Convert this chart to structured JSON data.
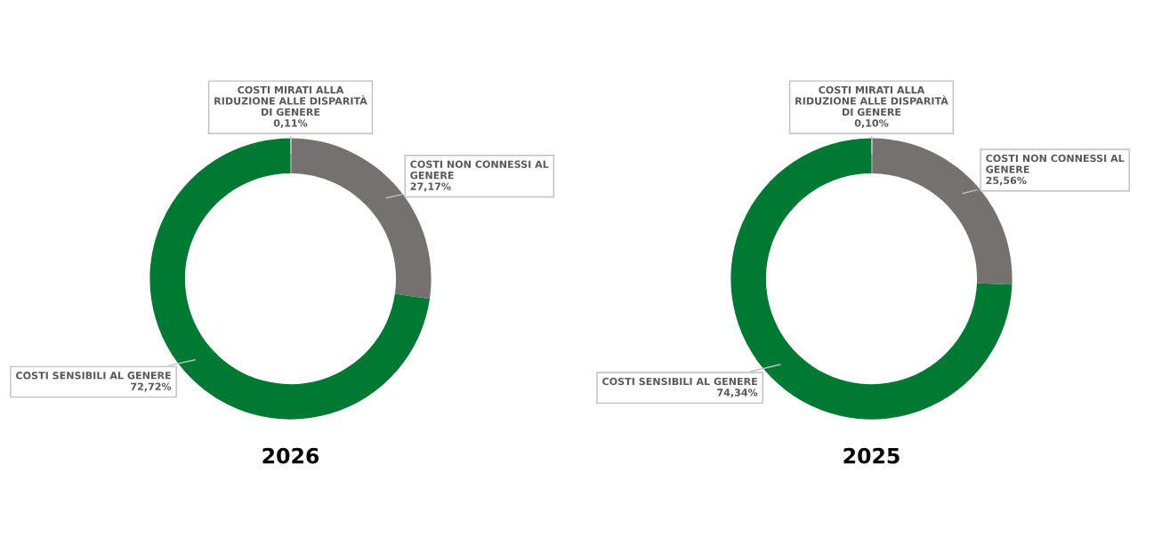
{
  "chart_data": [
    {
      "type": "donut",
      "title": "2026",
      "categories": [
        "COSTI MIRATI ALLA\nRIDUZIONE ALLE DISPARITÀ\nDI GENERE",
        "COSTI NON CONNESSI AL\nGENERE",
        "COSTI SENSIBILI AL GENERE"
      ],
      "values": [
        0.11,
        27.17,
        72.72
      ],
      "value_labels": [
        "0,11%",
        "27,17%",
        "72,72%"
      ],
      "colors": [
        "#a5a5a5",
        "#767171",
        "#007a33"
      ]
    },
    {
      "type": "donut",
      "title": "2025",
      "categories": [
        "COSTI MIRATI ALLA\nRIDUZIONE ALLE DISPARITÀ\nDI GENERE",
        "COSTI NON CONNESSI AL\nGENERE",
        "COSTI SENSIBILI AL GENERE"
      ],
      "values": [
        0.1,
        25.56,
        74.34
      ],
      "value_labels": [
        "0,10%",
        "25,56%",
        "74,34%"
      ],
      "colors": [
        "#a5a5a5",
        "#767171",
        "#007a33"
      ]
    }
  ]
}
